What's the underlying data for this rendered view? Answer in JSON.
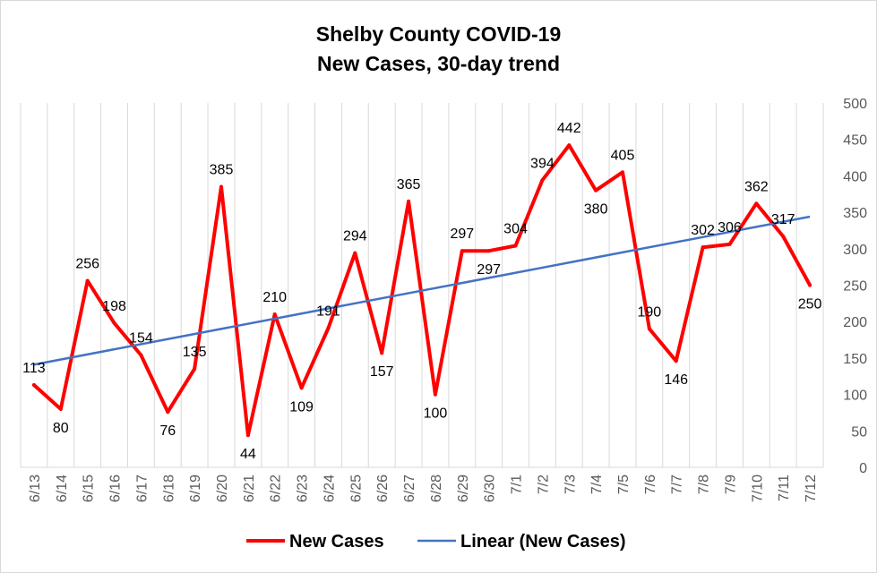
{
  "chart_data": {
    "type": "line",
    "title_line1": "Shelby County COVID-19",
    "title_line2": "New Cases, 30-day trend",
    "xlabel": "",
    "ylabel": "",
    "ylim": [
      0,
      500
    ],
    "y_ticks": [
      0,
      50,
      100,
      150,
      200,
      250,
      300,
      350,
      400,
      450,
      500
    ],
    "y_axis_position": "right",
    "grid": "vertical",
    "legend_position": "bottom",
    "categories": [
      "6/13",
      "6/14",
      "6/15",
      "6/16",
      "6/17",
      "6/18",
      "6/19",
      "6/20",
      "6/21",
      "6/22",
      "6/23",
      "6/24",
      "6/25",
      "6/26",
      "6/27",
      "6/28",
      "6/29",
      "6/30",
      "7/1",
      "7/2",
      "7/3",
      "7/4",
      "7/5",
      "7/6",
      "7/7",
      "7/8",
      "7/9",
      "7/10",
      "7/11",
      "7/12"
    ],
    "series": [
      {
        "name": "New Cases",
        "color": "#ff0000",
        "values": [
          113,
          80,
          256,
          198,
          154,
          76,
          135,
          385,
          44,
          210,
          109,
          191,
          294,
          157,
          365,
          100,
          297,
          297,
          304,
          394,
          442,
          380,
          405,
          190,
          146,
          302,
          306,
          362,
          317,
          250
        ]
      },
      {
        "name": "Linear (New Cases)",
        "color": "#4472c4",
        "type": "trendline",
        "start": 141,
        "end": 344
      }
    ]
  }
}
